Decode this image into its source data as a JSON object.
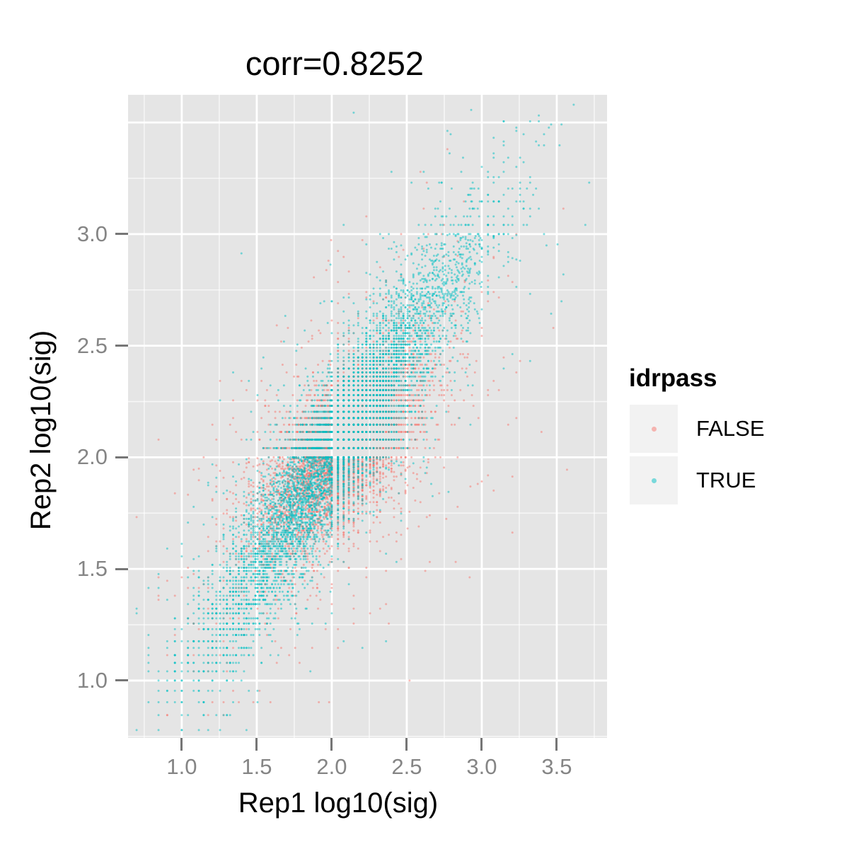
{
  "chart_data": {
    "type": "scatter",
    "title": "corr=0.8252",
    "xlabel": "Rep1 log10(sig)",
    "ylabel": "Rep2 log10(sig)",
    "xlim": [
      0.642,
      3.835
    ],
    "ylim": [
      0.743,
      3.624
    ],
    "x_axis": {
      "ticks": [
        {
          "v": 1.0,
          "label": "1.0"
        },
        {
          "v": 1.5,
          "label": "1.5"
        },
        {
          "v": 2.0,
          "label": "2.0"
        },
        {
          "v": 2.5,
          "label": "2.5"
        },
        {
          "v": 3.0,
          "label": "3.0"
        },
        {
          "v": 3.5,
          "label": "3.5"
        }
      ],
      "major_gridlines": [
        1.0,
        1.5,
        2.0,
        2.5,
        3.0,
        3.5
      ],
      "minor_gridlines": [
        0.75,
        1.25,
        1.75,
        2.25,
        2.75,
        3.25,
        3.75
      ]
    },
    "y_axis": {
      "ticks": [
        {
          "v": 1.0,
          "label": "1.0"
        },
        {
          "v": 1.5,
          "label": "1.5"
        },
        {
          "v": 2.0,
          "label": "2.0"
        },
        {
          "v": 2.5,
          "label": "2.5"
        },
        {
          "v": 3.0,
          "label": "3.0"
        }
      ],
      "major_gridlines": [
        1.0,
        1.5,
        2.0,
        2.5,
        3.0,
        3.5
      ],
      "minor_gridlines": [
        0.75,
        1.25,
        1.75,
        2.25,
        2.75,
        3.25
      ]
    },
    "legend": {
      "title": "idrpass",
      "position": "right",
      "entries": [
        {
          "label": "FALSE",
          "color": "#F8766D"
        },
        {
          "label": "TRUE",
          "color": "#00BFC4"
        }
      ]
    },
    "style": {
      "panel_background": "#E5E5E5",
      "major_grid_color": "#FFFFFF",
      "minor_grid_alpha": 0.65,
      "tick_color": "#767676",
      "tick_label_color": "#858585",
      "legend_key_fill": "#F2F2F2"
    },
    "point": {
      "radius": 1.5,
      "alpha": 0.5
    },
    "quantize_signal_to_2_sig_figs": true,
    "clip": {
      "x": [
        0.66,
        3.82
      ],
      "y": [
        0.76,
        3.6
      ]
    },
    "seed": 987654321,
    "series": [
      {
        "name": "FALSE",
        "color": "#F8766D",
        "n": 4300,
        "components": [
          {
            "weight": 0.8,
            "s_mean": 2.06,
            "s_sd": 0.235,
            "s_min": 1.45,
            "s_max": 2.9,
            "slope": 0.8,
            "intercept": 0.37,
            "x_sd": 0.155,
            "y_sd": 0.13
          },
          {
            "weight": 0.2,
            "s_mean": 2.0,
            "s_sd": 0.42,
            "s_min": 1.0,
            "s_max": 3.05,
            "slope": 0.85,
            "intercept": 0.25,
            "x_sd": 0.3,
            "y_sd": 0.3
          }
        ]
      },
      {
        "name": "TRUE",
        "color": "#00BFC4",
        "n": 6200,
        "components": [
          {
            "weight": 0.88,
            "s_mean": 2.03,
            "s_sd": 0.44,
            "s_min": 0.93,
            "s_max": 3.55,
            "slope": 1.05,
            "intercept": -0.09,
            "x_sd": 0.125,
            "y_sd": 0.125
          },
          {
            "weight": 0.12,
            "s_mean": 2.1,
            "s_sd": 0.55,
            "s_min": 0.95,
            "s_max": 3.65,
            "slope": 1.05,
            "intercept": -0.09,
            "x_sd": 0.28,
            "y_sd": 0.28
          }
        ]
      }
    ]
  }
}
